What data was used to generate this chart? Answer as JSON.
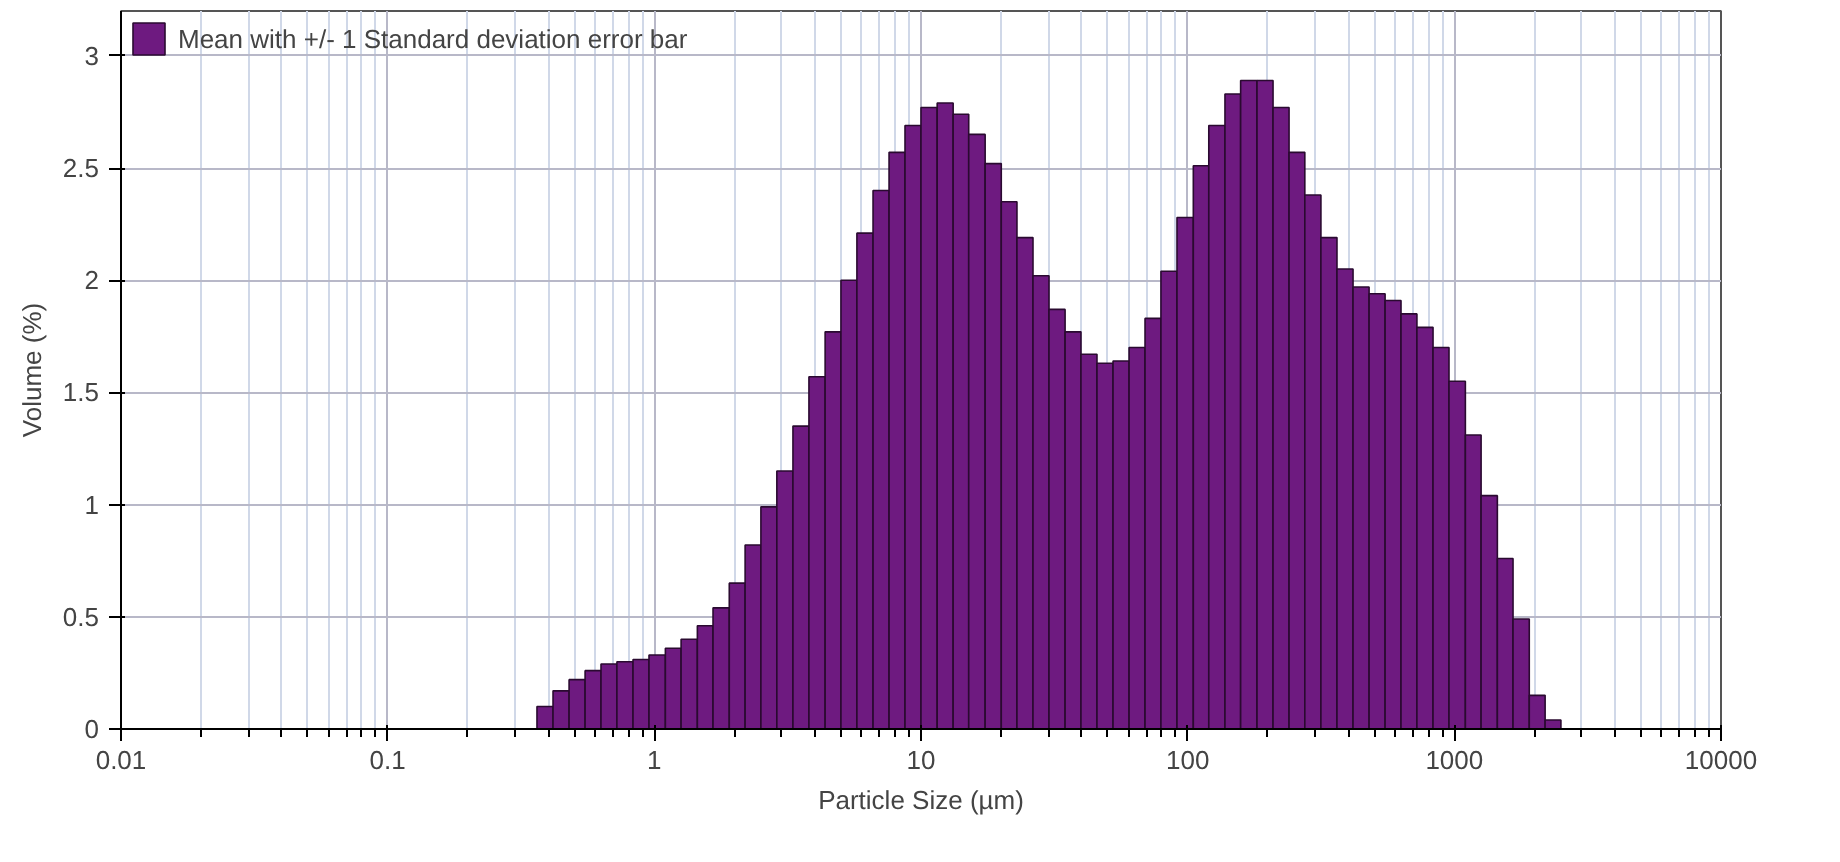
{
  "chart_data": {
    "type": "histogram",
    "xlabel": "Particle Size (µm)",
    "ylabel": "Volume (%)",
    "bins": [
      0.363,
      0.417,
      0.479,
      0.55,
      0.631,
      0.724,
      0.832,
      0.955,
      1.1,
      1.26,
      1.45,
      1.66,
      1.91,
      2.19,
      2.51,
      2.88,
      3.31,
      3.8,
      4.37,
      5.01,
      5.75,
      6.61,
      7.59,
      8.71,
      10.0,
      11.5,
      13.2,
      15.1,
      17.4,
      20.0,
      22.9,
      26.3,
      30.2,
      34.7,
      39.8,
      45.7,
      52.5,
      60.3,
      69.2,
      79.4,
      91.2,
      105,
      120,
      138,
      158,
      182,
      209,
      240,
      275,
      316,
      363,
      417,
      479,
      550,
      631,
      724,
      832,
      955,
      1100,
      1260,
      1450,
      1660,
      1910,
      2190,
      2510
    ],
    "series": [
      {
        "name": "Mean with +/- 1 Standard deviation error bar",
        "color": "#6e1a80",
        "values": [
          0.1,
          0.17,
          0.22,
          0.26,
          0.29,
          0.3,
          0.31,
          0.33,
          0.36,
          0.4,
          0.46,
          0.54,
          0.65,
          0.82,
          0.99,
          1.15,
          1.35,
          1.57,
          1.77,
          2.0,
          2.21,
          2.4,
          2.57,
          2.69,
          2.77,
          2.79,
          2.74,
          2.65,
          2.52,
          2.35,
          2.19,
          2.02,
          1.87,
          1.77,
          1.67,
          1.63,
          1.64,
          1.7,
          1.83,
          2.04,
          2.28,
          2.51,
          2.69,
          2.83,
          2.89,
          2.89,
          2.77,
          2.57,
          2.38,
          2.19,
          2.05,
          1.97,
          1.94,
          1.91,
          1.85,
          1.79,
          1.7,
          1.55,
          1.31,
          1.04,
          0.76,
          0.49,
          0.15,
          0.04
        ]
      }
    ],
    "log": "x",
    "xlim": [
      0.01,
      10000
    ],
    "xticks": [
      0.01,
      0.1,
      1,
      10,
      100,
      1000,
      10000
    ],
    "ylim": [
      0,
      3.2
    ],
    "yticks": [
      0,
      0.5,
      1,
      1.5,
      2,
      2.5,
      3
    ],
    "grid": true,
    "legend": "top left"
  }
}
